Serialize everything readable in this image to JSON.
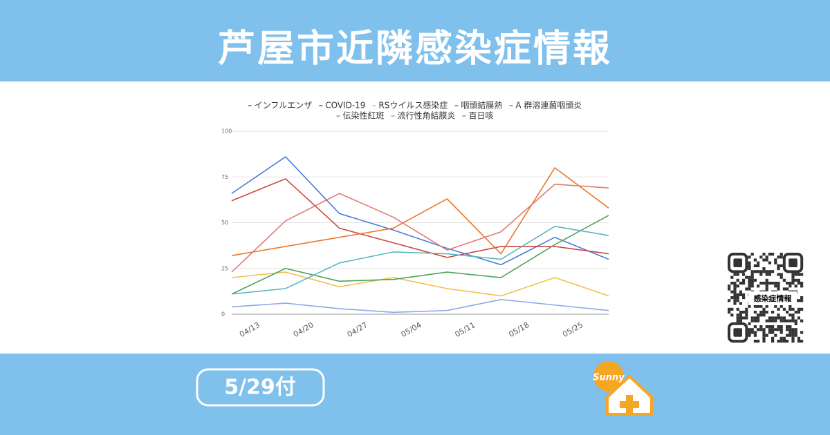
{
  "header": {
    "title": "芦屋市近隣感染症情報"
  },
  "chart_data": {
    "type": "line",
    "categories": [
      "04/13",
      "04/20",
      "04/27",
      "05/04",
      "05/11",
      "05/18",
      "05/25",
      null
    ],
    "series": [
      {
        "name": "インフルエンザ",
        "color": "#4a7bd8",
        "values": [
          66,
          86,
          55,
          46,
          36,
          27,
          42,
          30
        ]
      },
      {
        "name": "COVID-19",
        "color": "#c9463d",
        "values": [
          62,
          74,
          47,
          39,
          31,
          37,
          37,
          33
        ]
      },
      {
        "name": "RSウイルス感染症",
        "color": "#f0c24b",
        "values": [
          20,
          23,
          15,
          20,
          14,
          10,
          20,
          10
        ]
      },
      {
        "name": "咽頭結膜熱",
        "color": "#4ea35a",
        "values": [
          11,
          25,
          18,
          19,
          23,
          20,
          38,
          54
        ]
      },
      {
        "name": "A 群溶連菌咽頭炎",
        "color": "#e8782a",
        "values": [
          32,
          37,
          42,
          47,
          63,
          33,
          80,
          58
        ]
      },
      {
        "name": "伝染性紅斑",
        "color": "#5bb5c0",
        "values": [
          11,
          14,
          28,
          34,
          33,
          30,
          48,
          43
        ]
      },
      {
        "name": "流行性角結膜炎",
        "color": "#8fa8e8",
        "values": [
          4,
          6,
          3,
          1,
          2,
          8,
          5,
          2
        ]
      },
      {
        "name": "百日咳",
        "color": "#e07b75",
        "values": [
          23,
          51,
          66,
          53,
          35,
          45,
          71,
          69
        ]
      }
    ],
    "ylim": [
      0,
      100
    ],
    "yticks": [
      0,
      25,
      50,
      75,
      100
    ],
    "grid": true,
    "legend": "top"
  },
  "footer": {
    "date": "5/29付",
    "logo": "Sunny"
  },
  "qr": {
    "label": "感染症情報"
  }
}
